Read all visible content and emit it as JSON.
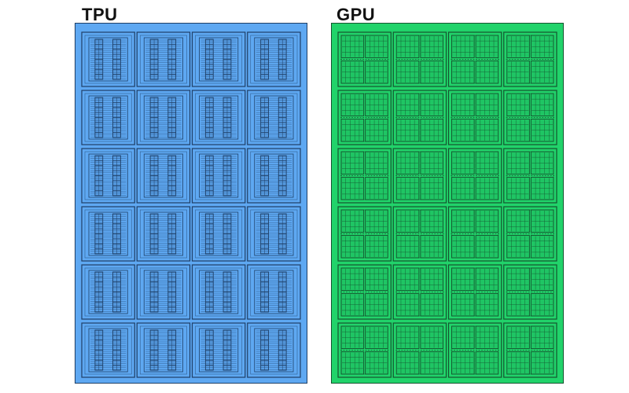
{
  "tpu": {
    "label": "TPU",
    "rows": 6,
    "cols": 4,
    "fill": "#5ea8f2",
    "stroke": "#1f3f66"
  },
  "gpu": {
    "label": "GPU",
    "rows": 6,
    "cols": 4,
    "fill": "#21d36a",
    "stroke": "#15532f"
  }
}
